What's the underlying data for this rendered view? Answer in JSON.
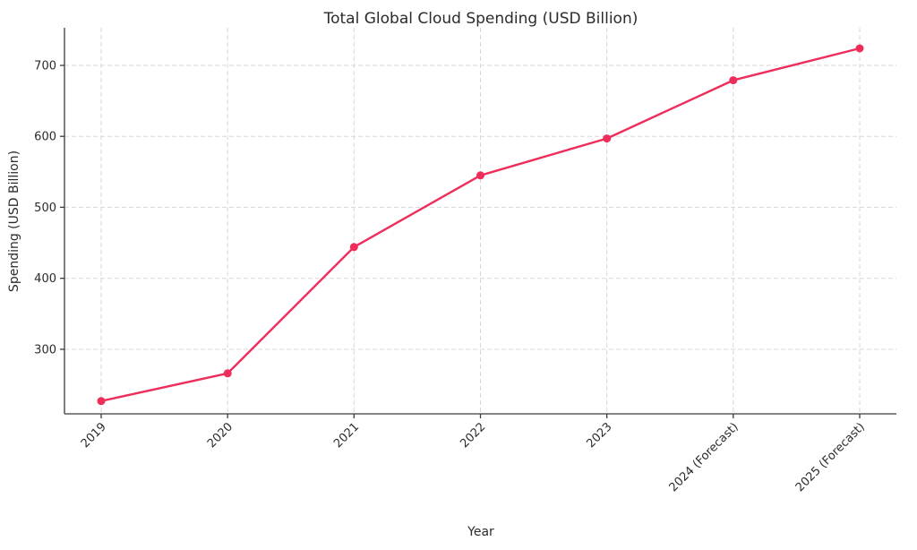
{
  "page": {
    "background": "#ffffff"
  },
  "chart_data": {
    "type": "line",
    "title": "Total Global Cloud Spending (USD Billion)",
    "xlabel": "Year",
    "ylabel": "Spending (USD Billion)",
    "categories": [
      "2019",
      "2020",
      "2021",
      "2022",
      "2023",
      "2024 (Forecast)",
      "2025 (Forecast)"
    ],
    "series": [
      {
        "name": "Total Global Cloud Spending",
        "values": [
          227,
          266,
          444,
          545,
          597,
          679,
          724
        ],
        "color": "#EE2D5B",
        "marker": "circle",
        "line_style": "solid"
      }
    ],
    "yticks": [
      300,
      400,
      500,
      600,
      700
    ],
    "ylim": [
      209,
      753
    ],
    "grid": true,
    "grid_style": "dashed",
    "legend": "none",
    "colors": {
      "line": "#EE2D5B",
      "grid": "#d7d7d7",
      "axis": "#3a3a3a",
      "text": "#2b2b2b",
      "background": "#ffffff"
    }
  }
}
